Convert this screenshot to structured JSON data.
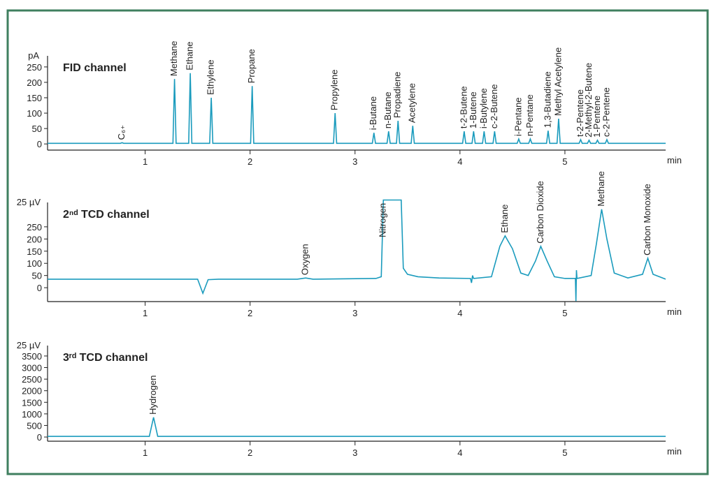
{
  "chart_data": [
    {
      "type": "line",
      "title": "FID channel",
      "ylabel": "pA",
      "xlabel": "min",
      "color": "#1a9bbd",
      "xlim": [
        0.07,
        5.96
      ],
      "xticks": [
        1,
        2,
        3,
        4,
        5
      ],
      "ylim": [
        -20,
        286
      ],
      "yticks": [
        0,
        50,
        100,
        150,
        200,
        250
      ],
      "x": [
        0.07,
        0.765,
        0.78,
        0.795,
        1.265,
        1.28,
        1.295,
        1.415,
        1.43,
        1.445,
        1.615,
        1.63,
        1.645,
        2.005,
        2.02,
        2.035,
        2.795,
        2.81,
        2.825,
        3.165,
        3.18,
        3.195,
        3.305,
        3.32,
        3.335,
        3.395,
        3.41,
        3.425,
        3.535,
        3.55,
        3.565,
        4.025,
        4.04,
        4.055,
        4.115,
        4.13,
        4.145,
        4.215,
        4.23,
        4.245,
        4.315,
        4.33,
        4.345,
        4.545,
        4.56,
        4.575,
        4.655,
        4.67,
        4.685,
        4.825,
        4.84,
        4.855,
        4.925,
        4.94,
        4.955,
        5.135,
        5.15,
        5.165,
        5.215,
        5.23,
        5.245,
        5.295,
        5.31,
        5.325,
        5.385,
        5.4,
        5.415,
        5.96
      ],
      "values": [
        2,
        2,
        4,
        2,
        2,
        211,
        2,
        2,
        230,
        2,
        2,
        150,
        2,
        2,
        188,
        2,
        2,
        100,
        2,
        2,
        36,
        2,
        2,
        41,
        2,
        2,
        75,
        2,
        2,
        59,
        2,
        2,
        41,
        2,
        2,
        41,
        2,
        2,
        41,
        2,
        2,
        41,
        2,
        2,
        16,
        2,
        2,
        16,
        2,
        2,
        43,
        2,
        2,
        82,
        2,
        2,
        14,
        2,
        2,
        12,
        2,
        2,
        12,
        2,
        2,
        14,
        2,
        2
      ],
      "annotations": [
        {
          "text": "C₆₊",
          "x": 0.78
        },
        {
          "text": "Methane",
          "x": 1.28
        },
        {
          "text": "Ethane",
          "x": 1.43
        },
        {
          "text": "Ethylene",
          "x": 1.63
        },
        {
          "text": "Propane",
          "x": 2.02
        },
        {
          "text": "Propylene",
          "x": 2.81
        },
        {
          "text": "i-Butane",
          "x": 3.18
        },
        {
          "text": "n-Butane",
          "x": 3.32
        },
        {
          "text": "Propadiene",
          "x": 3.41
        },
        {
          "text": "Acetylene",
          "x": 3.55
        },
        {
          "text": "t-2-Butene",
          "x": 4.04
        },
        {
          "text": "1-Butene",
          "x": 4.13
        },
        {
          "text": "i-Butylene",
          "x": 4.23
        },
        {
          "text": "c-2-Butene",
          "x": 4.33
        },
        {
          "text": "i-Pentane",
          "x": 4.56
        },
        {
          "text": "n-Pentane",
          "x": 4.67
        },
        {
          "text": "1,3-Butadiene",
          "x": 4.84
        },
        {
          "text": "Methyl Acetylene",
          "x": 4.94
        },
        {
          "text": "t-2-Pentene",
          "x": 5.15
        },
        {
          "text": "2-Methyl-2-Butene",
          "x": 5.23
        },
        {
          "text": "1-Pentene",
          "x": 5.31
        },
        {
          "text": "c-2-Pentene",
          "x": 5.4
        }
      ]
    },
    {
      "type": "line",
      "title": "2ⁿᵈ TCD channel",
      "ylabel": "25 µV",
      "xlabel": "min",
      "color": "#1a9bbd",
      "xlim": [
        0.07,
        5.96
      ],
      "xticks": [
        1,
        2,
        3,
        4,
        5
      ],
      "ylim": [
        -57,
        350
      ],
      "yticks": [
        0,
        50,
        100,
        150,
        200,
        250
      ],
      "x": [
        0.07,
        1.5,
        1.55,
        1.6,
        1.7,
        2.45,
        2.53,
        2.6,
        3.2,
        3.25,
        3.27,
        3.44,
        3.46,
        3.5,
        3.6,
        3.8,
        4.1,
        4.11,
        4.12,
        4.13,
        4.3,
        4.38,
        4.43,
        4.5,
        4.58,
        4.65,
        4.72,
        4.77,
        4.83,
        4.9,
        5.0,
        5.1,
        5.105,
        5.11,
        5.115,
        5.25,
        5.3,
        5.35,
        5.4,
        5.47,
        5.6,
        5.74,
        5.79,
        5.84,
        5.96
      ],
      "values": [
        35,
        35,
        -23,
        33,
        35,
        35,
        40,
        35,
        38,
        45,
        360,
        360,
        80,
        55,
        45,
        40,
        38,
        20,
        50,
        38,
        45,
        170,
        213,
        160,
        60,
        50,
        110,
        170,
        110,
        45,
        38,
        38,
        -55,
        72,
        38,
        50,
        180,
        322,
        200,
        60,
        40,
        55,
        121,
        55,
        35
      ],
      "annotations": [
        {
          "text": "Oxygen",
          "x": 2.53
        },
        {
          "text": "Nitrogen",
          "x": 3.27
        },
        {
          "text": "Ethane",
          "x": 4.43
        },
        {
          "text": "Carbon Dioxide",
          "x": 4.77
        },
        {
          "text": "Methane",
          "x": 5.35
        },
        {
          "text": "Carbon Monoxide",
          "x": 5.79
        }
      ]
    },
    {
      "type": "line",
      "title": "3ʳᵈ TCD channel",
      "ylabel": "25 µV",
      "xlabel": "min",
      "color": "#1a9bbd",
      "xlim": [
        0.07,
        5.96
      ],
      "xticks": [
        1,
        2,
        3,
        4,
        5
      ],
      "ylim": [
        -180,
        3950
      ],
      "yticks": [
        0,
        500,
        1000,
        1500,
        2000,
        2500,
        3000,
        3500
      ],
      "x": [
        0.07,
        1.04,
        1.08,
        1.12,
        5.96
      ],
      "values": [
        30,
        30,
        850,
        30,
        30
      ],
      "annotations": [
        {
          "text": "Hydrogen",
          "x": 1.08
        }
      ]
    }
  ]
}
